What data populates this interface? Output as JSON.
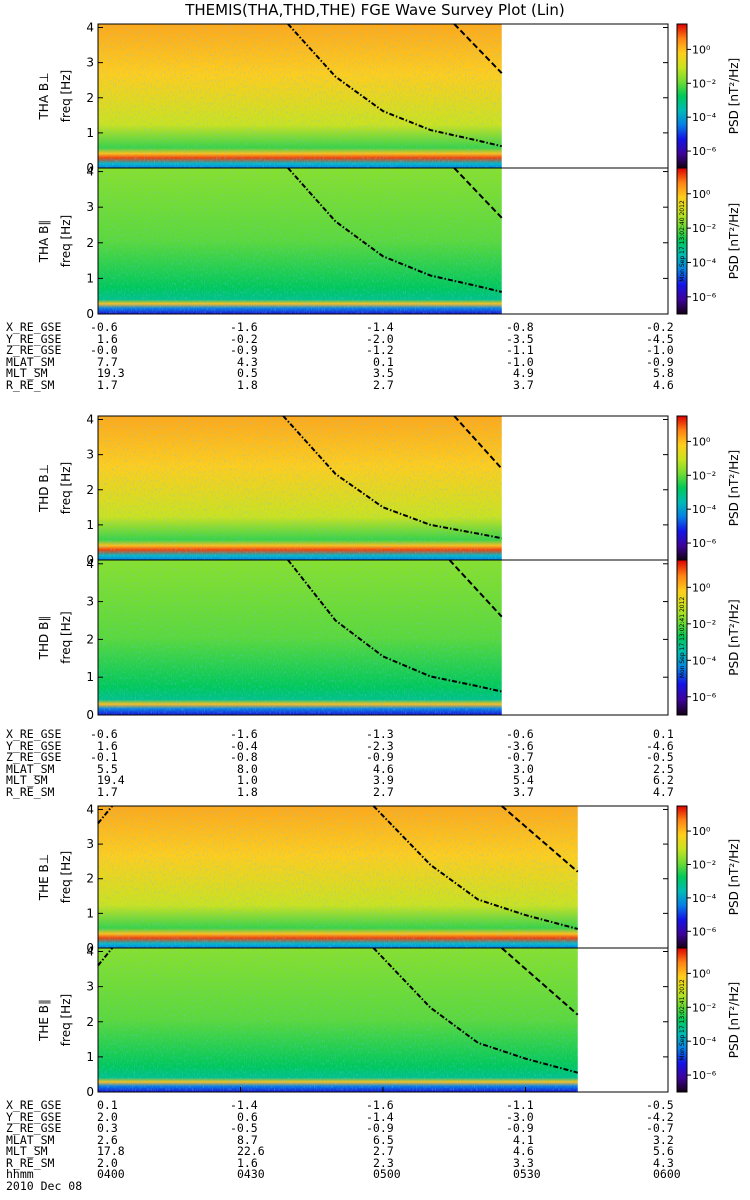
{
  "title": "THEMIS(THA,THD,THE) FGE Wave Survey Plot (Lin)",
  "colors": {
    "nan_fill": "#ffffff",
    "line": "#000000"
  },
  "colorbar": {
    "label": "PSD [nT²/Hz]",
    "ticks": [
      "10⁰",
      "10⁻²",
      "10⁻⁴",
      "10⁻⁶"
    ],
    "tick_values_log10": [
      0,
      -2,
      -4,
      -6
    ],
    "range_log10": [
      -7,
      1.5
    ],
    "stamps": [
      "Mon Sep 17 13:02:40 2012",
      "Mon Sep 17 13:02:41 2012",
      "Mon Sep 17 13:02:41 2012"
    ]
  },
  "chart_data": {
    "type": "heatmap",
    "title": "THEMIS(THA,THD,THE) FGE Wave Survey Plot (Lin)",
    "x_axis": {
      "label": "hhmm",
      "date": "2010 Dec 08",
      "ticks": [
        "0400",
        "0430",
        "0500",
        "0530",
        "0600"
      ],
      "range": [
        "0400",
        "0600"
      ]
    },
    "y_axis": {
      "label": "freq [Hz]",
      "range": [
        0,
        4.1
      ],
      "ticks": [
        "0",
        "1",
        "2",
        "3",
        "4"
      ]
    },
    "panels": [
      {
        "name": "THA B⊥",
        "probe": "THA",
        "data_end": "0525",
        "curves": [
          {
            "style": "dashdot",
            "points": [
              [
                "0440",
                4.1
              ],
              [
                "0450",
                2.6
              ],
              [
                "0500",
                1.62
              ],
              [
                "0510",
                1.08
              ],
              [
                "0520",
                0.78
              ],
              [
                "0525",
                0.62
              ]
            ]
          },
          {
            "style": "dashed",
            "points": [
              [
                "0515",
                4.1
              ],
              [
                "0525",
                2.7
              ]
            ]
          }
        ]
      },
      {
        "name": "THA B∥",
        "probe": "THA",
        "data_end": "0525",
        "curves": [
          {
            "style": "dashdot",
            "points": [
              [
                "0440",
                4.1
              ],
              [
                "0450",
                2.6
              ],
              [
                "0500",
                1.62
              ],
              [
                "0510",
                1.08
              ],
              [
                "0520",
                0.78
              ],
              [
                "0525",
                0.62
              ]
            ]
          },
          {
            "style": "dashed",
            "points": [
              [
                "0515",
                4.1
              ],
              [
                "0525",
                2.7
              ]
            ]
          }
        ]
      },
      {
        "name": "THD B⊥",
        "probe": "THD",
        "data_end": "0525",
        "curves": [
          {
            "style": "dashdot",
            "points": [
              [
                "0439",
                4.1
              ],
              [
                "0450",
                2.45
              ],
              [
                "0500",
                1.5
              ],
              [
                "0510",
                1.0
              ],
              [
                "0520",
                0.75
              ],
              [
                "0525",
                0.62
              ]
            ]
          },
          {
            "style": "dashed",
            "points": [
              [
                "0515",
                4.1
              ],
              [
                "0525",
                2.6
              ]
            ]
          }
        ]
      },
      {
        "name": "THD B∥",
        "probe": "THD",
        "data_end": "0525",
        "curves": [
          {
            "style": "dashdot",
            "points": [
              [
                "0440",
                4.1
              ],
              [
                "0450",
                2.5
              ],
              [
                "0500",
                1.55
              ],
              [
                "0510",
                1.02
              ],
              [
                "0520",
                0.76
              ],
              [
                "0525",
                0.62
              ]
            ]
          },
          {
            "style": "dashed",
            "points": [
              [
                "0514",
                4.1
              ],
              [
                "0525",
                2.6
              ]
            ]
          }
        ]
      },
      {
        "name": "THE B⊥",
        "probe": "THE",
        "data_end": "0541",
        "curves": [
          {
            "style": "dashdot",
            "points": [
              [
                "0400",
                3.6
              ],
              [
                "0403",
                4.1
              ]
            ]
          },
          {
            "style": "dashdot",
            "points": [
              [
                "0458",
                4.1
              ],
              [
                "0510",
                2.4
              ],
              [
                "0520",
                1.4
              ],
              [
                "0530",
                0.95
              ],
              [
                "0541",
                0.55
              ]
            ]
          },
          {
            "style": "dashed",
            "points": [
              [
                "0525",
                4.1
              ],
              [
                "0541",
                2.2
              ]
            ]
          }
        ]
      },
      {
        "name": "THE B∥",
        "probe": "THE",
        "data_end": "0541",
        "curves": [
          {
            "style": "dashdot",
            "points": [
              [
                "0400",
                3.6
              ],
              [
                "0403",
                4.1
              ]
            ]
          },
          {
            "style": "dashdot",
            "points": [
              [
                "0458",
                4.1
              ],
              [
                "0510",
                2.4
              ],
              [
                "0520",
                1.4
              ],
              [
                "0530",
                0.95
              ],
              [
                "0541",
                0.55
              ]
            ]
          },
          {
            "style": "dashed",
            "points": [
              [
                "0525",
                4.1
              ],
              [
                "0541",
                2.2
              ]
            ]
          }
        ]
      }
    ],
    "ephemeris": [
      {
        "probe": "THA",
        "rows": [
          {
            "label": "X_RE_GSE",
            "values": [
              "-0.6",
              "-1.6",
              "-1.4",
              "-0.8",
              "-0.2"
            ]
          },
          {
            "label": "Y_RE_GSE",
            "values": [
              "1.6",
              "-0.2",
              "-2.0",
              "-3.5",
              "-4.5"
            ]
          },
          {
            "label": "Z_RE_GSE",
            "values": [
              "-0.0",
              "-0.9",
              "-1.2",
              "-1.1",
              "-1.0"
            ]
          },
          {
            "label": "MLAT_SM",
            "values": [
              "7.7",
              "4.3",
              "0.1",
              "-1.0",
              "-0.9"
            ]
          },
          {
            "label": "MLT_SM",
            "values": [
              "19.3",
              "0.5",
              "3.5",
              "4.9",
              "5.8"
            ]
          },
          {
            "label": "R_RE_SM",
            "values": [
              "1.7",
              "1.8",
              "2.7",
              "3.7",
              "4.6"
            ]
          }
        ]
      },
      {
        "probe": "THD",
        "rows": [
          {
            "label": "X_RE_GSE",
            "values": [
              "-0.6",
              "-1.6",
              "-1.3",
              "-0.6",
              "0.1"
            ]
          },
          {
            "label": "Y_RE_GSE",
            "values": [
              "1.6",
              "-0.4",
              "-2.3",
              "-3.6",
              "-4.6"
            ]
          },
          {
            "label": "Z_RE_GSE",
            "values": [
              "-0.1",
              "-0.8",
              "-0.9",
              "-0.7",
              "-0.5"
            ]
          },
          {
            "label": "MLAT_SM",
            "values": [
              "5.5",
              "8.0",
              "4.6",
              "3.0",
              "2.5"
            ]
          },
          {
            "label": "MLT_SM",
            "values": [
              "19.4",
              "1.0",
              "3.9",
              "5.4",
              "6.2"
            ]
          },
          {
            "label": "R_RE_SM",
            "values": [
              "1.7",
              "1.8",
              "2.7",
              "3.7",
              "4.7"
            ]
          }
        ]
      },
      {
        "probe": "THE",
        "rows": [
          {
            "label": "X_RE_GSE",
            "values": [
              "0.1",
              "-1.4",
              "-1.6",
              "-1.1",
              "-0.5"
            ]
          },
          {
            "label": "Y_RE_GSE",
            "values": [
              "2.0",
              "0.6",
              "-1.4",
              "-3.0",
              "-4.2"
            ]
          },
          {
            "label": "Z_RE_GSE",
            "values": [
              "0.3",
              "-0.5",
              "-0.9",
              "-0.9",
              "-0.7"
            ]
          },
          {
            "label": "MLAT_SM",
            "values": [
              "2.6",
              "8.7",
              "6.5",
              "4.1",
              "3.2"
            ]
          },
          {
            "label": "MLT_SM",
            "values": [
              "17.8",
              "22.6",
              "2.7",
              "4.6",
              "5.6"
            ]
          },
          {
            "label": "R_RE_SM",
            "values": [
              "2.0",
              "1.6",
              "2.3",
              "3.3",
              "4.3"
            ]
          }
        ]
      }
    ]
  }
}
